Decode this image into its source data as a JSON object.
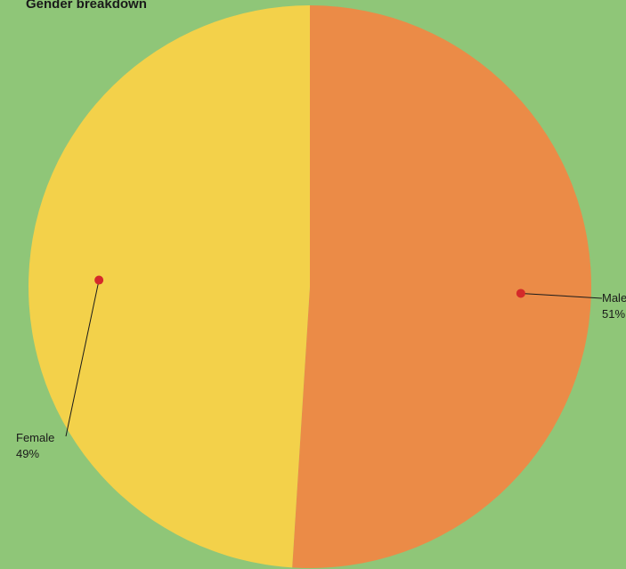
{
  "chart_data": {
    "type": "pie",
    "title": "Gender breakdown",
    "slices": [
      {
        "label": "Male",
        "value": 51,
        "value_label": "51%",
        "color": "#eb8b47"
      },
      {
        "label": "Female",
        "value": 49,
        "value_label": "49%",
        "color": "#f3d14a"
      }
    ],
    "marker_color": "#d42a2a"
  }
}
